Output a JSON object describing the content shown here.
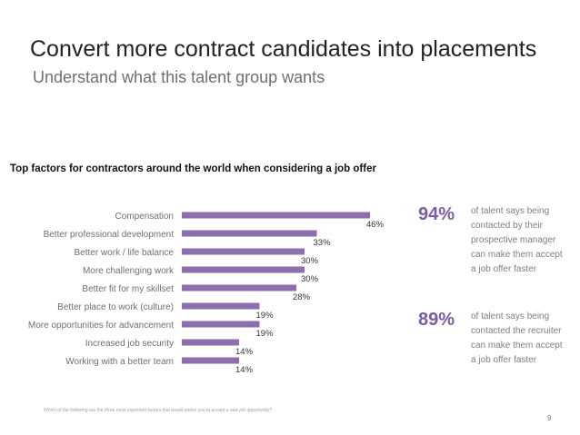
{
  "slide": {
    "title": "Convert more contract candidates into placements",
    "subtitle": "Understand what this talent group wants",
    "footnote": "Which of the following are the three most important factors that would entice you to accept a new job opportunity?",
    "page_number": "9"
  },
  "colors": {
    "bar": "#8b6fae",
    "accent": "#7b5ca7"
  },
  "chart_data": {
    "type": "bar",
    "orientation": "horizontal",
    "title": "Top factors for contractors around the world when considering a job offer",
    "categories": [
      "Compensation",
      "Better professional development",
      "Better work / life balance",
      "More challenging work",
      "Better fit for my skillset",
      "Better place to work (culture)",
      "More opportunities for advancement",
      "Increased job security",
      "Working with a better team"
    ],
    "values": [
      46,
      33,
      30,
      30,
      28,
      19,
      19,
      14,
      14
    ],
    "value_labels": [
      "46%",
      "33%",
      "30%",
      "30%",
      "28%",
      "19%",
      "19%",
      "14%",
      "14%"
    ],
    "unit": "%",
    "xlim": [
      0,
      50
    ],
    "grid": false,
    "legend": "none"
  },
  "stats": [
    {
      "percent": "94%",
      "text": "of talent says being contacted by their prospective manager can make them accept a job offer faster"
    },
    {
      "percent": "89%",
      "text": "of talent says being contacted the recruiter can make them accept a job offer faster"
    }
  ]
}
